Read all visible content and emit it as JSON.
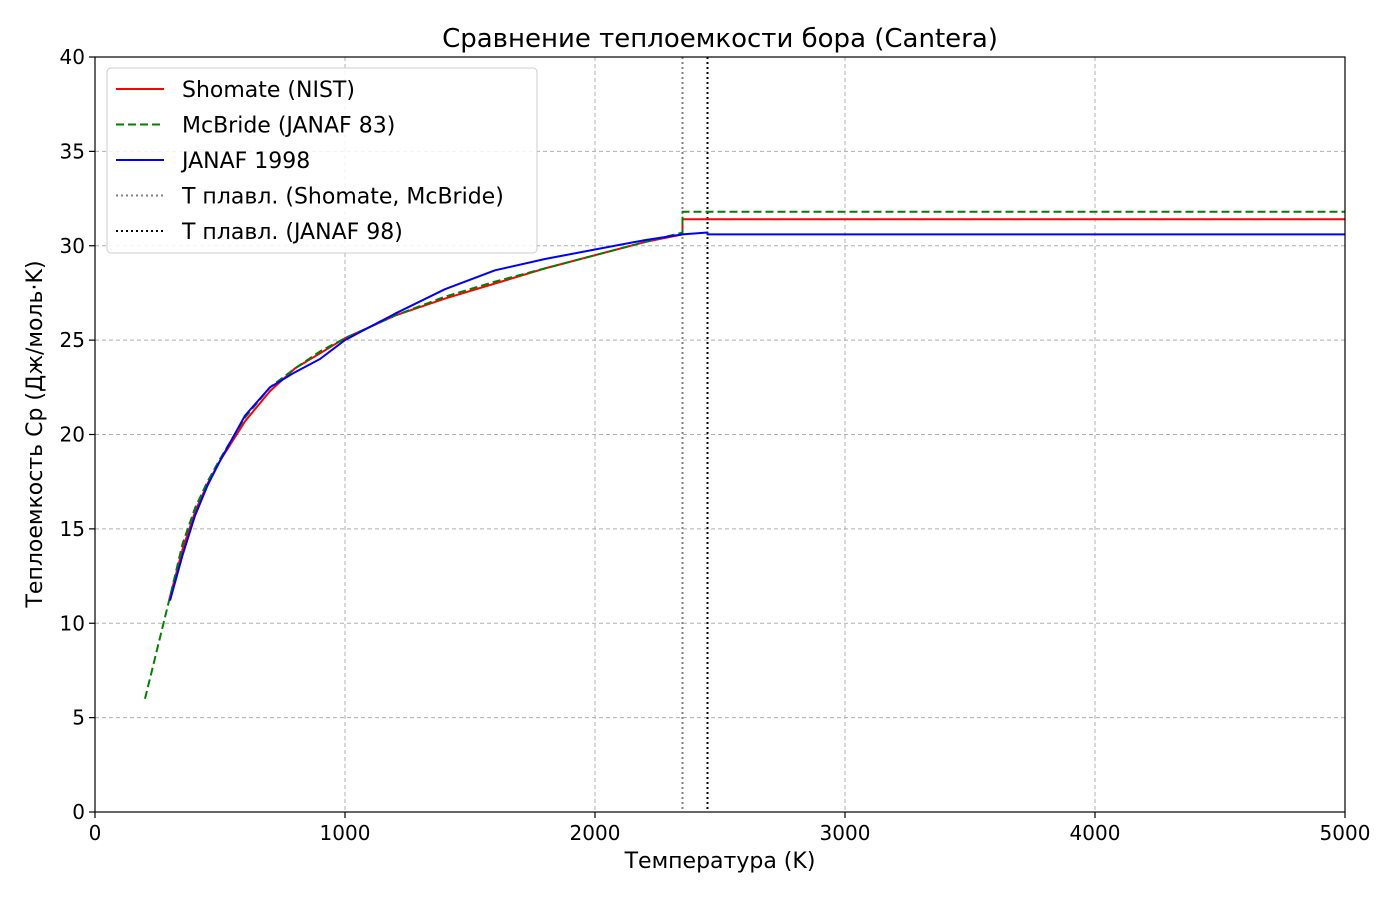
{
  "chart_data": {
    "type": "line",
    "title": "Сравнение теплоемкости бора (Cantera)",
    "xlabel": "Температура (K)",
    "ylabel": "Теплоемкость Cp (Дж/моль·K)",
    "xlim": [
      0,
      5000
    ],
    "ylim": [
      0,
      40
    ],
    "xticks": [
      0,
      1000,
      2000,
      3000,
      4000,
      5000
    ],
    "yticks": [
      0,
      5,
      10,
      15,
      20,
      25,
      30,
      35,
      40
    ],
    "grid": true,
    "legend_position": "top-left",
    "series": [
      {
        "name": "Shomate (NIST)",
        "color": "#ff0000",
        "style": "solid",
        "x": [
          298,
          350,
          400,
          450,
          500,
          600,
          700,
          800,
          900,
          1000,
          1200,
          1400,
          1600,
          1800,
          2000,
          2200,
          2350,
          2350,
          5000
        ],
        "y": [
          11.3,
          13.9,
          15.9,
          17.4,
          18.6,
          20.7,
          22.3,
          23.5,
          24.3,
          25.1,
          26.3,
          27.2,
          28.0,
          28.8,
          29.5,
          30.2,
          30.6,
          31.4,
          31.4
        ]
      },
      {
        "name": "McBride (JANAF 83)",
        "color": "#008000",
        "style": "dashed",
        "x": [
          200,
          250,
          300,
          350,
          400,
          450,
          500,
          600,
          700,
          800,
          900,
          1000,
          1200,
          1400,
          1600,
          1800,
          2000,
          2200,
          2350,
          2350,
          5000
        ],
        "y": [
          6.0,
          8.7,
          11.4,
          14.2,
          16.1,
          17.5,
          18.7,
          20.9,
          22.5,
          23.5,
          24.4,
          25.1,
          26.3,
          27.3,
          28.1,
          28.8,
          29.5,
          30.2,
          30.7,
          31.8,
          31.8
        ]
      },
      {
        "name": "JANAF 1998",
        "color": "#0000ff",
        "style": "solid",
        "x": [
          300,
          350,
          400,
          450,
          500,
          600,
          700,
          800,
          900,
          1000,
          1100,
          1200,
          1400,
          1600,
          1800,
          2000,
          2200,
          2350,
          2450,
          2450,
          5000
        ],
        "y": [
          11.2,
          13.6,
          15.7,
          17.3,
          18.6,
          21.0,
          22.5,
          23.3,
          24.0,
          25.0,
          25.7,
          26.4,
          27.7,
          28.7,
          29.3,
          29.8,
          30.3,
          30.6,
          30.7,
          30.6,
          30.6
        ]
      }
    ],
    "vlines": [
      {
        "name": "T плавл. (Shomate, McBride)",
        "x": 2350,
        "color": "#808080",
        "style": "dotted"
      },
      {
        "name": "T плавл. (JANAF 98)",
        "x": 2450,
        "color": "#000000",
        "style": "dotted"
      }
    ]
  }
}
